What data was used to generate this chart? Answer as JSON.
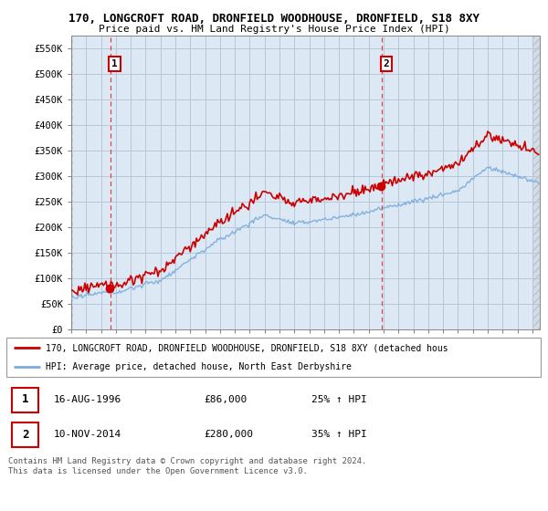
{
  "title": "170, LONGCROFT ROAD, DRONFIELD WOODHOUSE, DRONFIELD, S18 8XY",
  "subtitle": "Price paid vs. HM Land Registry's House Price Index (HPI)",
  "ylim": [
    0,
    575000
  ],
  "yticks": [
    0,
    50000,
    100000,
    150000,
    200000,
    250000,
    300000,
    350000,
    400000,
    450000,
    500000,
    550000
  ],
  "ytick_labels": [
    "£0",
    "£50K",
    "£100K",
    "£150K",
    "£200K",
    "£250K",
    "£300K",
    "£350K",
    "£400K",
    "£450K",
    "£500K",
    "£550K"
  ],
  "hpi_color": "#7aacdc",
  "price_color": "#cc0000",
  "marker_color": "#cc0000",
  "vline_color": "#dd4444",
  "grid_color": "#c8d8e8",
  "plot_bg": "#dce8f4",
  "fig_bg": "#ffffff",
  "hatch_color": "#c0c8d0",
  "annotation1_year": 1996.62,
  "annotation2_year": 2014.87,
  "purchase1_price": 86000,
  "purchase2_price": 280000,
  "legend_line1": "170, LONGCROFT ROAD, DRONFIELD WOODHOUSE, DRONFIELD, S18 8XY (detached hous",
  "legend_line2": "HPI: Average price, detached house, North East Derbyshire",
  "table_row1_num": "1",
  "table_row1_date": "16-AUG-1996",
  "table_row1_price": "£86,000",
  "table_row1_hpi": "25% ↑ HPI",
  "table_row2_num": "2",
  "table_row2_date": "10-NOV-2014",
  "table_row2_price": "£280,000",
  "table_row2_hpi": "35% ↑ HPI",
  "footer": "Contains HM Land Registry data © Crown copyright and database right 2024.\nThis data is licensed under the Open Government Licence v3.0.",
  "xstart": 1994,
  "xend": 2025.5
}
